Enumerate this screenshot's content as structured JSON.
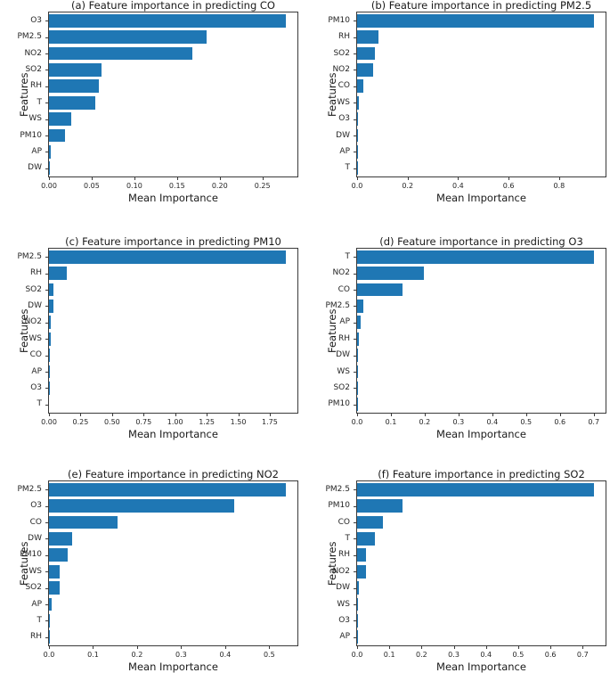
{
  "figure": {
    "background": "#ffffff",
    "bar_color": "#1f77b4",
    "spine_color": "#3a3a3a",
    "xlabel": "Mean Importance",
    "ylabel": "Features"
  },
  "chart_data": [
    {
      "type": "bar",
      "orientation": "horizontal",
      "panel_label": "(a)",
      "target": "CO",
      "title": "(a) Feature importance in predicting CO",
      "xlabel": "Mean Importance",
      "ylabel": "Features",
      "grid": false,
      "categories": [
        "O3",
        "PM2.5",
        "NO2",
        "SO2",
        "RH",
        "T",
        "WS",
        "PM10",
        "AP",
        "DW"
      ],
      "values": [
        0.277,
        0.185,
        0.168,
        0.062,
        0.058,
        0.054,
        0.026,
        0.019,
        0.002,
        0.0005
      ],
      "xticks": {
        "labels": [
          "0.00",
          "0.05",
          "0.10",
          "0.15",
          "0.20",
          "0.25"
        ],
        "values": [
          0,
          0.05,
          0.1,
          0.15,
          0.2,
          0.25
        ]
      },
      "xlim": [
        0,
        0.291
      ]
    },
    {
      "type": "bar",
      "orientation": "horizontal",
      "panel_label": "(b)",
      "target": "PM2.5",
      "title": "(b) Feature importance in predicting PM2.5",
      "xlabel": "Mean Importance",
      "ylabel": "Features",
      "grid": false,
      "categories": [
        "PM10",
        "RH",
        "SO2",
        "NO2",
        "CO",
        "WS",
        "O3",
        "DW",
        "AP",
        "T"
      ],
      "values": [
        0.937,
        0.083,
        0.071,
        0.063,
        0.025,
        0.007,
        0.005,
        0.001,
        0.0005,
        0.0003
      ],
      "xticks": {
        "labels": [
          "0.0",
          "0.2",
          "0.4",
          "0.6",
          "0.8"
        ],
        "values": [
          0,
          0.2,
          0.4,
          0.6,
          0.8
        ]
      },
      "xlim": [
        0,
        0.984
      ]
    },
    {
      "type": "bar",
      "orientation": "horizontal",
      "panel_label": "(c)",
      "target": "PM10",
      "title": "(c) Feature importance in predicting PM10",
      "xlabel": "Mean Importance",
      "ylabel": "Features",
      "grid": false,
      "categories": [
        "PM2.5",
        "RH",
        "SO2",
        "DW",
        "NO2",
        "WS",
        "CO",
        "AP",
        "O3",
        "T"
      ],
      "values": [
        1.875,
        0.143,
        0.034,
        0.032,
        0.012,
        0.012,
        0.005,
        0.001,
        0.001,
        0.0005
      ],
      "xticks": {
        "labels": [
          "0.00",
          "0.25",
          "0.50",
          "0.75",
          "1.00",
          "1.25",
          "1.50",
          "1.75"
        ],
        "values": [
          0,
          0.25,
          0.5,
          0.75,
          1.0,
          1.25,
          1.5,
          1.75
        ]
      },
      "xlim": [
        0,
        1.969
      ]
    },
    {
      "type": "bar",
      "orientation": "horizontal",
      "panel_label": "(d)",
      "target": "O3",
      "title": "(d) Feature importance in predicting O3",
      "xlabel": "Mean Importance",
      "ylabel": "Features",
      "grid": false,
      "categories": [
        "T",
        "NO2",
        "CO",
        "PM2.5",
        "AP",
        "RH",
        "DW",
        "WS",
        "SO2",
        "PM10"
      ],
      "values": [
        0.7,
        0.197,
        0.134,
        0.019,
        0.011,
        0.004,
        0.001,
        0.001,
        0.0005,
        0.0003
      ],
      "xticks": {
        "labels": [
          "0.0",
          "0.1",
          "0.2",
          "0.3",
          "0.4",
          "0.5",
          "0.6",
          "0.7"
        ],
        "values": [
          0,
          0.1,
          0.2,
          0.3,
          0.4,
          0.5,
          0.6,
          0.7
        ]
      },
      "xlim": [
        0,
        0.735
      ]
    },
    {
      "type": "bar",
      "orientation": "horizontal",
      "panel_label": "(e)",
      "target": "NO2",
      "title": "(e) Feature importance in predicting NO2",
      "xlabel": "Mean Importance",
      "ylabel": "Features",
      "grid": false,
      "categories": [
        "PM2.5",
        "O3",
        "CO",
        "DW",
        "PM10",
        "WS",
        "SO2",
        "AP",
        "T",
        "RH"
      ],
      "values": [
        0.537,
        0.421,
        0.156,
        0.053,
        0.043,
        0.025,
        0.024,
        0.006,
        0.003,
        0.0005
      ],
      "xticks": {
        "labels": [
          "0.0",
          "0.1",
          "0.2",
          "0.3",
          "0.4",
          "0.5"
        ],
        "values": [
          0,
          0.1,
          0.2,
          0.3,
          0.4,
          0.5
        ]
      },
      "xlim": [
        0,
        0.564
      ]
    },
    {
      "type": "bar",
      "orientation": "horizontal",
      "panel_label": "(f)",
      "target": "SO2",
      "title": "(f) Feature importance in predicting SO2",
      "xlabel": "Mean Importance",
      "ylabel": "Features",
      "grid": false,
      "categories": [
        "PM2.5",
        "PM10",
        "CO",
        "T",
        "RH",
        "NO2",
        "DW",
        "WS",
        "O3",
        "AP"
      ],
      "values": [
        0.734,
        0.14,
        0.079,
        0.054,
        0.029,
        0.027,
        0.005,
        0.001,
        0.0005,
        0.0003
      ],
      "xticks": {
        "labels": [
          "0.0",
          "0.1",
          "0.2",
          "0.3",
          "0.4",
          "0.5",
          "0.6",
          "0.7"
        ],
        "values": [
          0,
          0.1,
          0.2,
          0.3,
          0.4,
          0.5,
          0.6,
          0.7
        ]
      },
      "xlim": [
        0,
        0.771
      ]
    }
  ]
}
